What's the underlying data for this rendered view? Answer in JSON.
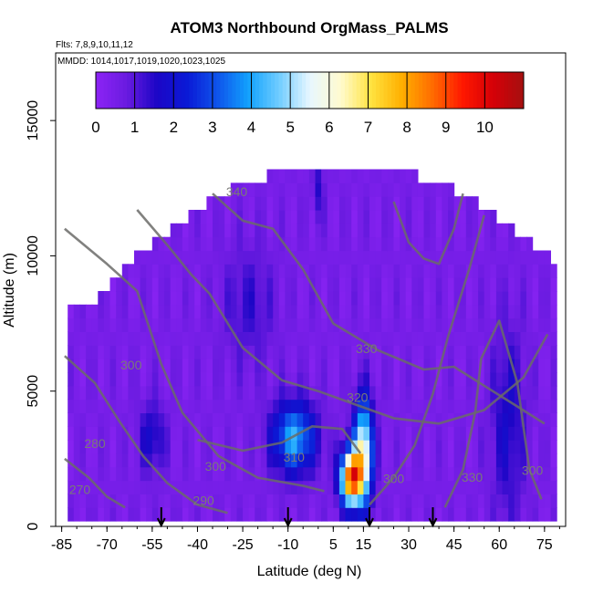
{
  "chart_data": {
    "type": "heatmap",
    "title": "ATOM3 Northbound OrgMass_PALMS",
    "subtitle_flights": "Flts: 7,8,9,10,11,12",
    "subtitle_dates": "MMDD: 1014,1017,1019,1020,1023,1025",
    "xlabel": "Latitude (deg N)",
    "ylabel": "Altitude (m)",
    "xlim": [
      -87,
      82
    ],
    "ylim": [
      0,
      17500
    ],
    "x_ticks": [
      -85,
      -70,
      -55,
      -40,
      -25,
      -10,
      5,
      15,
      30,
      45,
      60,
      75
    ],
    "x_tick_labels": [
      "-85",
      "-70",
      "-55",
      "-40",
      "-25",
      "-10",
      "5",
      "15",
      "30",
      "45",
      "60",
      "75"
    ],
    "y_ticks": [
      0,
      5000,
      10000,
      15000
    ],
    "y_tick_labels": [
      "0",
      "5000",
      "10000",
      "15000"
    ],
    "colorbar": {
      "min": 0,
      "max": 11,
      "ticks": [
        0,
        1,
        2,
        3,
        4,
        5,
        6,
        7,
        8,
        9,
        10
      ],
      "tick_labels": [
        "0",
        "1",
        "2",
        "3",
        "4",
        "5",
        "6",
        "7",
        "8",
        "9",
        "10"
      ],
      "colors": [
        "#8d24f5",
        "#6a1be0",
        "#1c06c6",
        "#0a1ad6",
        "#0f55ec",
        "#12a2fd",
        "#71cdff",
        "#e8f7ff",
        "#fffbd0",
        "#ffe340",
        "#ffb000",
        "#ff6d00",
        "#ff1800",
        "#d50008",
        "#a51010"
      ]
    },
    "contour_labels": [
      {
        "text": "340",
        "lat": -27,
        "alt": 12200
      },
      {
        "text": "330",
        "lat": 16,
        "alt": 6400
      },
      {
        "text": "320",
        "lat": 13,
        "alt": 4600
      },
      {
        "text": "310",
        "lat": -8,
        "alt": 2400
      },
      {
        "text": "300",
        "lat": -34,
        "alt": 2050
      },
      {
        "text": "300",
        "lat": -62,
        "alt": 5800
      },
      {
        "text": "290",
        "lat": -38,
        "alt": 800
      },
      {
        "text": "280",
        "lat": -74,
        "alt": 2900
      },
      {
        "text": "270",
        "lat": -79,
        "alt": 1200
      },
      {
        "text": "300",
        "lat": 25,
        "alt": 1600
      },
      {
        "text": "330",
        "lat": 51,
        "alt": 1650
      },
      {
        "text": "300",
        "lat": 71,
        "alt": 1900
      }
    ],
    "flight_markers_lat": [
      -52,
      -10,
      17,
      38
    ]
  }
}
